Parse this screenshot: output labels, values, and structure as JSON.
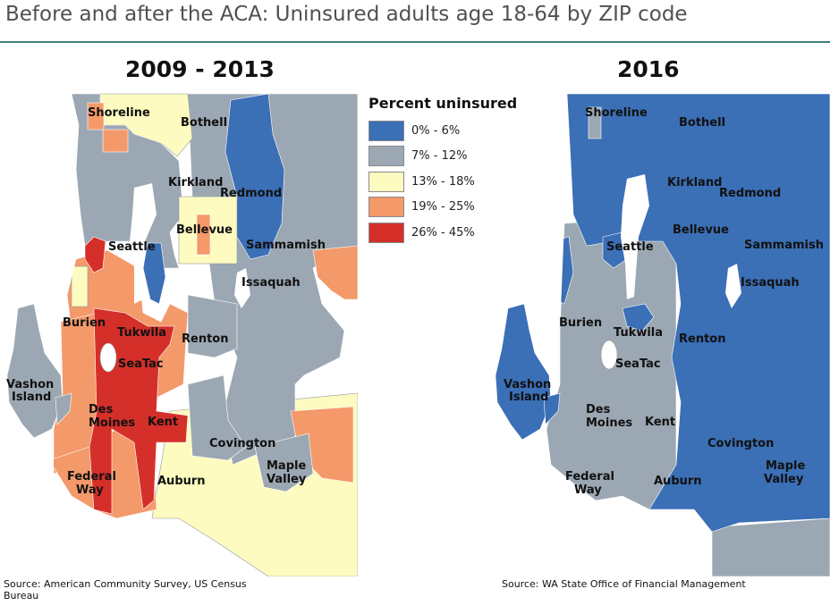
{
  "title": "Before and after the ACA: Uninsured adults age 18-64 by ZIP code",
  "left_map": {
    "title": "2009 - 2013",
    "source": "Source: American Community Survey, US Census Bureau"
  },
  "right_map": {
    "title": "2016",
    "source": "Source: WA State Office of Financial Management"
  },
  "legend": {
    "title": "Percent uninsured",
    "items": [
      {
        "label": "0% - 6%",
        "color": "#3b6fb6"
      },
      {
        "label": "7% - 12%",
        "color": "#9ba8b3"
      },
      {
        "label": "13% - 18%",
        "color": "#fdfbc0"
      },
      {
        "label": "19% - 25%",
        "color": "#f4996a"
      },
      {
        "label": "26% - 45%",
        "color": "#d52f2a"
      }
    ]
  },
  "places": {
    "shoreline": "Shoreline",
    "bothell": "Bothell",
    "kirkland": "Kirkland",
    "redmond": "Redmond",
    "bellevue": "Bellevue",
    "seattle": "Seattle",
    "sammamish": "Sammamish",
    "issaquah": "Issaquah",
    "burien": "Burien",
    "tukwila": "Tukwila",
    "renton": "Renton",
    "seatac": "SeaTac",
    "vashon_line1": "Vashon",
    "vashon_line2": "Island",
    "desmoines_line1": "Des",
    "desmoines_line2": "Moines",
    "kent": "Kent",
    "covington": "Covington",
    "maplevalley_line1": "Maple",
    "maplevalley_line2": "Valley",
    "federalway_line1": "Federal",
    "federalway_line2": "Way",
    "auburn": "Auburn"
  }
}
